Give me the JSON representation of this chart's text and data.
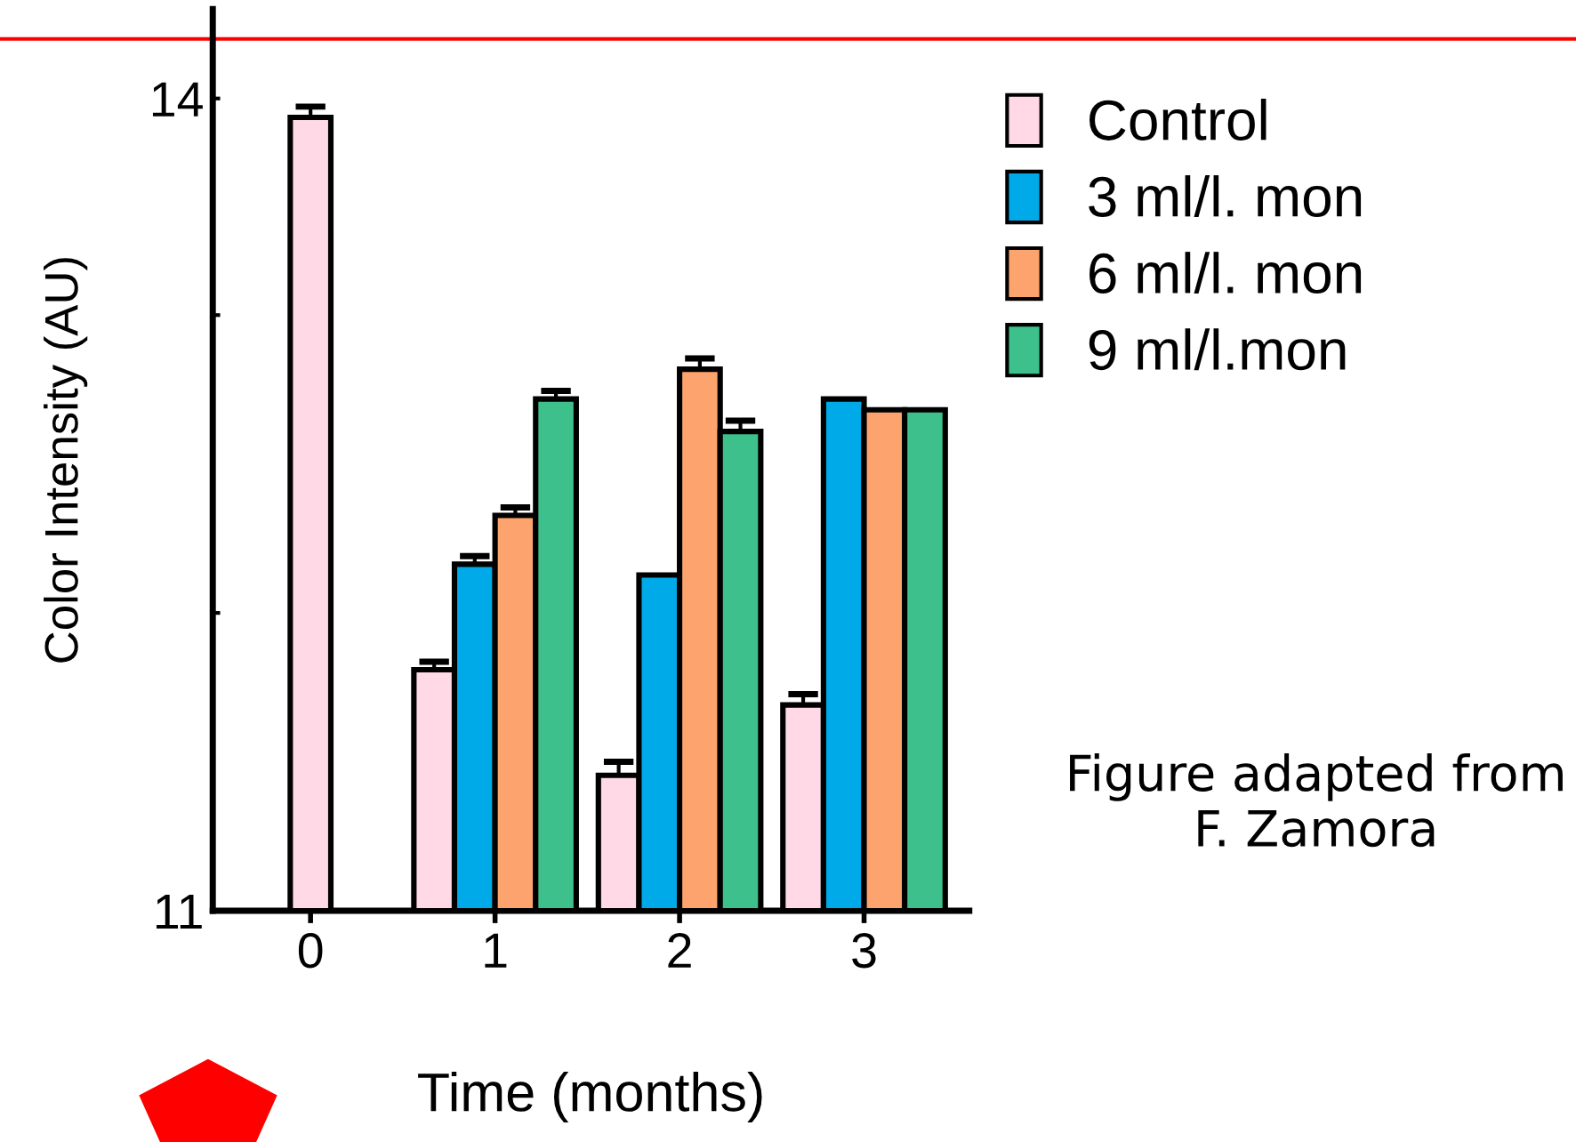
{
  "chart_data": {
    "type": "bar",
    "xlabel": "Time (months)",
    "ylabel": "Color Intensity (AU)",
    "categories": [
      "0",
      "1",
      "2",
      "3"
    ],
    "series": [
      {
        "name": "Control",
        "color": "#ffd9e6",
        "values": [
          13.93,
          11.89,
          11.5,
          11.76
        ],
        "errors": [
          0.04,
          0.03,
          0.05,
          0.04
        ]
      },
      {
        "name": "3 ml/l. mon",
        "color": "#00aae8",
        "values": [
          null,
          12.28,
          12.24,
          12.89
        ],
        "errors": [
          null,
          0.03,
          null,
          null
        ]
      },
      {
        "name": "6 ml/l. mon",
        "color": "#fda46e",
        "values": [
          null,
          12.46,
          13.0,
          12.85
        ],
        "errors": [
          null,
          0.03,
          0.04,
          null
        ]
      },
      {
        "name": "9 ml/l.mon",
        "color": "#3ec08c",
        "values": [
          null,
          12.89,
          12.77,
          12.85
        ],
        "errors": [
          null,
          0.03,
          0.04,
          null
        ]
      }
    ],
    "ylim": [
      11,
      14.33
    ],
    "yticks": [
      11,
      {
        "value": 12.1,
        "label": null
      },
      {
        "value": 13.2,
        "label": null
      },
      14
    ],
    "ref_lines": [
      {
        "axis": "y",
        "value": 14.22,
        "color": "#ff0000"
      }
    ],
    "legend": "right",
    "grid": false,
    "annotations": [
      "Figure adapted from F. Zamora"
    ]
  }
}
